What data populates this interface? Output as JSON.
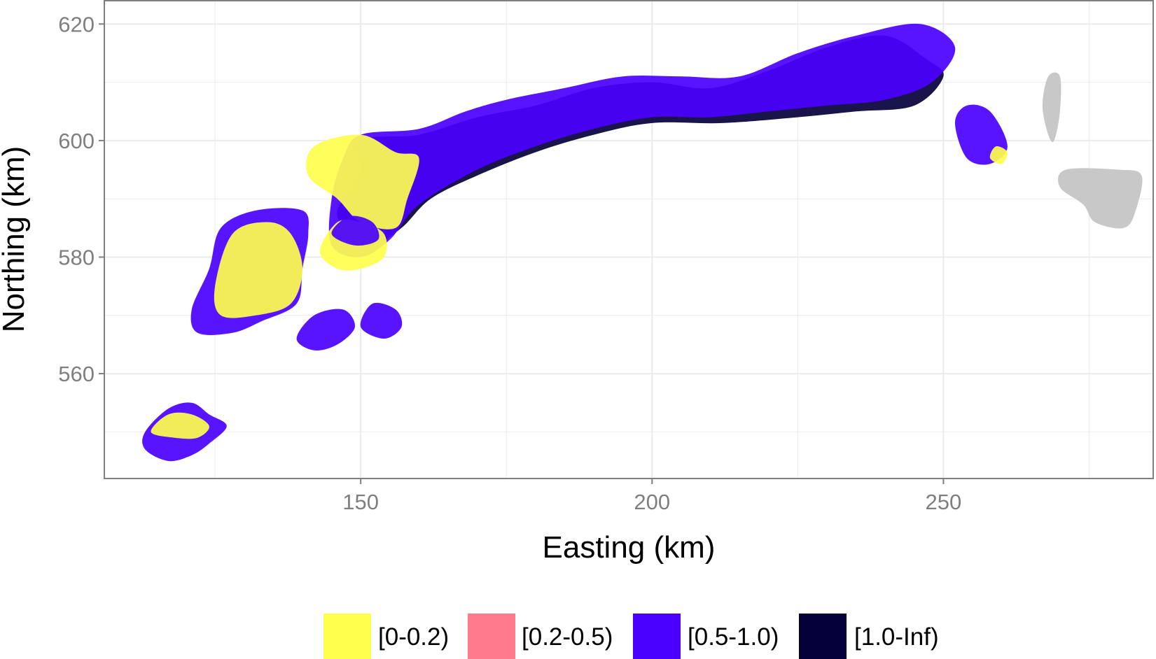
{
  "colors": {
    "band_0_0_2": "#ffff4d",
    "band_0_2_0_5": "#ff7a8a",
    "band_0_5_1_0": "#4a00ff",
    "band_1_0_inf": "#05003a",
    "no_data": "#c8c8c8",
    "grid": "#ebebeb",
    "panel_border": "#7f7f7f"
  },
  "chart_data": {
    "type": "heatmap",
    "title": "",
    "xlabel": "Easting (km)",
    "ylabel": "Northing (km)",
    "xlim": [
      106,
      286
    ],
    "ylim": [
      542,
      624
    ],
    "x_ticks": [
      150,
      200,
      250
    ],
    "y_ticks": [
      560,
      580,
      600,
      620
    ],
    "x_tick_labels": [
      "150",
      "200",
      "250"
    ],
    "y_tick_labels": [
      "560",
      "580",
      "600",
      "620"
    ],
    "grid": true,
    "legend_position": "bottom",
    "legend": [
      {
        "label": "[0-0.2)",
        "color_key": "band_0_0_2"
      },
      {
        "label": "[0.2-0.5)",
        "color_key": "band_0_2_0_5"
      },
      {
        "label": "[0.5-1.0)",
        "color_key": "band_0_5_1_0"
      },
      {
        "label": "[1.0-Inf)",
        "color_key": "band_1_0_inf"
      }
    ],
    "regions": [
      {
        "class": "band_1_0_inf",
        "outline": [
          [
            150,
            600
          ],
          [
            160,
            601
          ],
          [
            170,
            604
          ],
          [
            180,
            606
          ],
          [
            190,
            609
          ],
          [
            200,
            610
          ],
          [
            210,
            609
          ],
          [
            220,
            612
          ],
          [
            230,
            616
          ],
          [
            240,
            618
          ],
          [
            247,
            614
          ],
          [
            250,
            611
          ],
          [
            245,
            606
          ],
          [
            235,
            605
          ],
          [
            225,
            604
          ],
          [
            212,
            603
          ],
          [
            200,
            603
          ],
          [
            190,
            601
          ],
          [
            180,
            598
          ],
          [
            170,
            594
          ],
          [
            162,
            590
          ],
          [
            157,
            585
          ],
          [
            152,
            582
          ],
          [
            148,
            584
          ],
          [
            146,
            588
          ],
          [
            150,
            594
          ]
        ]
      },
      {
        "class": "band_0_5_1_0",
        "outline": [
          [
            150,
            601
          ],
          [
            160,
            602
          ],
          [
            168,
            605
          ],
          [
            175,
            607
          ],
          [
            185,
            609
          ],
          [
            195,
            611
          ],
          [
            205,
            611
          ],
          [
            215,
            611
          ],
          [
            225,
            615
          ],
          [
            235,
            618
          ],
          [
            246,
            620
          ],
          [
            252,
            616
          ],
          [
            248,
            610
          ],
          [
            240,
            607
          ],
          [
            230,
            606
          ],
          [
            220,
            605
          ],
          [
            210,
            604
          ],
          [
            200,
            604
          ],
          [
            190,
            602
          ],
          [
            180,
            599
          ],
          [
            170,
            595
          ],
          [
            160,
            589
          ],
          [
            155,
            583
          ],
          [
            150,
            580
          ],
          [
            145,
            582
          ],
          [
            145,
            590
          ],
          [
            147,
            597
          ]
        ]
      },
      {
        "class": "band_0_0_2",
        "outline": [
          [
            142,
            599
          ],
          [
            150,
            601
          ],
          [
            156,
            598
          ],
          [
            160,
            597
          ],
          [
            158,
            590
          ],
          [
            156,
            585
          ],
          [
            150,
            586
          ],
          [
            146,
            590
          ],
          [
            141,
            594
          ]
        ]
      },
      {
        "class": "band_0_5_1_0",
        "outline": [
          [
            124,
            578
          ],
          [
            126,
            585
          ],
          [
            132,
            588
          ],
          [
            140,
            588
          ],
          [
            141,
            584
          ],
          [
            140,
            578
          ],
          [
            139,
            572
          ],
          [
            133,
            569
          ],
          [
            128,
            567
          ],
          [
            122,
            567
          ],
          [
            121,
            571
          ]
        ]
      },
      {
        "class": "band_0_0_2",
        "outline": [
          [
            125,
            575
          ],
          [
            128,
            584
          ],
          [
            134,
            586
          ],
          [
            138,
            584
          ],
          [
            140,
            578
          ],
          [
            138,
            572
          ],
          [
            132,
            570
          ],
          [
            126,
            570
          ]
        ]
      },
      {
        "class": "band_0_0_2",
        "outline": [
          [
            143,
            581
          ],
          [
            146,
            586
          ],
          [
            150,
            586
          ],
          [
            154,
            584
          ],
          [
            154,
            580
          ],
          [
            150,
            578
          ],
          [
            146,
            578
          ]
        ]
      },
      {
        "class": "band_0_5_1_0",
        "outline": [
          [
            145,
            584
          ],
          [
            148,
            587
          ],
          [
            152,
            586
          ],
          [
            153,
            583
          ],
          [
            149,
            582
          ]
        ]
      },
      {
        "class": "band_0_5_1_0",
        "outline": [
          [
            139,
            566
          ],
          [
            142,
            570
          ],
          [
            147,
            571
          ],
          [
            149,
            568
          ],
          [
            146,
            565
          ],
          [
            142,
            564
          ]
        ]
      },
      {
        "class": "band_0_5_1_0",
        "outline": [
          [
            150,
            568
          ],
          [
            152,
            572
          ],
          [
            156,
            571
          ],
          [
            157,
            568
          ],
          [
            154,
            566
          ]
        ]
      },
      {
        "class": "band_0_5_1_0",
        "outline": [
          [
            113,
            547
          ],
          [
            113,
            550
          ],
          [
            117,
            554
          ],
          [
            121,
            555
          ],
          [
            124,
            553
          ],
          [
            127,
            551
          ],
          [
            124,
            548
          ],
          [
            121,
            546
          ],
          [
            117,
            545
          ]
        ]
      },
      {
        "class": "band_0_0_2",
        "outline": [
          [
            114,
            550
          ],
          [
            117,
            553
          ],
          [
            121,
            553
          ],
          [
            124,
            551
          ],
          [
            122,
            549
          ],
          [
            118,
            549
          ]
        ]
      },
      {
        "class": "band_0_5_1_0",
        "outline": [
          [
            252,
            603
          ],
          [
            254,
            606
          ],
          [
            258,
            605
          ],
          [
            261,
            599
          ],
          [
            258,
            596
          ],
          [
            254,
            597
          ]
        ]
      },
      {
        "class": "band_0_0_2",
        "outline": [
          [
            258,
            597
          ],
          [
            259,
            599
          ],
          [
            261,
            598
          ],
          [
            260,
            596
          ]
        ]
      },
      {
        "class": "no_data",
        "outline": [
          [
            270,
            592
          ],
          [
            271,
            595
          ],
          [
            280,
            595
          ],
          [
            284,
            594
          ],
          [
            283,
            588
          ],
          [
            281,
            585
          ],
          [
            276,
            586
          ],
          [
            274,
            589
          ]
        ]
      },
      {
        "class": "no_data",
        "outline": [
          [
            267,
            606
          ],
          [
            268,
            611
          ],
          [
            270,
            611
          ],
          [
            270,
            605
          ],
          [
            269,
            600
          ],
          [
            268,
            601
          ]
        ]
      }
    ]
  }
}
